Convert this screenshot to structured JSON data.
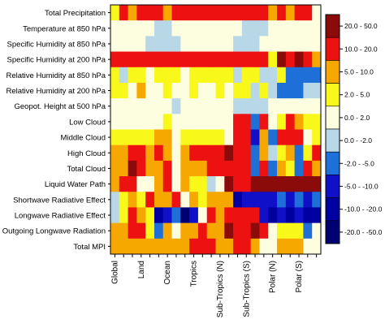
{
  "chart_data": {
    "type": "heatmap",
    "title": "",
    "xlabel": "",
    "ylabel": "",
    "rows": [
      "Total Precipitation",
      "Temperature at 850 hPa",
      "Specific Humidity at 850 hPa",
      "Specific Humidity at 200 hPa",
      "Relative Humidity at 850 hPa",
      "Relative Humidity at 200 hPa",
      "Geopot. Height at 500 hPa",
      "Low Cloud",
      "Middle Cloud",
      "High Cloud",
      "Total Cloud",
      "Liquid Water Path",
      "Shortwave Radiative Effect",
      "Longwave Radiative Effect",
      "Outgoing Longwave Radiation",
      "Total MPI"
    ],
    "column_labels": [
      "Global",
      "Land",
      "Ocean",
      "Tropics",
      "Sub-Tropics (N)",
      "Sub-Tropics (S)",
      "Polar (N)",
      "Polar (S)"
    ],
    "columns_per_label": 3,
    "legend": {
      "placement": "right",
      "bins": [
        {
          "label": "20.0 - 50.0",
          "color": "#8b0a0a"
        },
        {
          "label": "10.0 - 20.0",
          "color": "#ee1111"
        },
        {
          "label": "5.0 - 10.0",
          "color": "#f7a800"
        },
        {
          "label": "2.0 - 5.0",
          "color": "#f8f81a"
        },
        {
          "label": "0.0 - 2.0",
          "color": "#fdfde0"
        },
        {
          "label": "0.0 - -2.0",
          "color": "#b8d8e8"
        },
        {
          "label": "-2.0 - -5.0",
          "color": "#1e6fd8"
        },
        {
          "label": "-5.0 - -10.0",
          "color": "#1010c8"
        },
        {
          "label": "-10.0 - -20.0",
          "color": "#0000a0"
        },
        {
          "label": "-20.0 - -50.0",
          "color": "#000070"
        }
      ]
    },
    "values": [
      [
        3,
        1,
        2,
        1,
        1,
        1,
        2,
        1,
        1,
        1,
        1,
        1,
        1,
        1,
        1,
        1,
        1,
        1,
        2,
        1,
        2,
        1,
        1,
        4
      ],
      [
        4,
        4,
        4,
        4,
        4,
        5,
        5,
        4,
        4,
        4,
        4,
        4,
        4,
        4,
        4,
        5,
        5,
        5,
        4,
        4,
        4,
        4,
        4,
        4
      ],
      [
        4,
        4,
        4,
        4,
        5,
        5,
        5,
        5,
        4,
        4,
        4,
        4,
        4,
        4,
        5,
        5,
        5,
        4,
        4,
        4,
        4,
        4,
        4,
        4
      ],
      [
        1,
        1,
        1,
        1,
        1,
        1,
        1,
        1,
        1,
        1,
        1,
        1,
        1,
        1,
        1,
        1,
        1,
        1,
        3,
        0,
        1,
        0,
        1,
        2
      ],
      [
        3,
        5,
        3,
        3,
        4,
        3,
        3,
        3,
        4,
        3,
        3,
        3,
        3,
        3,
        5,
        3,
        3,
        5,
        5,
        3,
        6,
        6,
        6,
        6
      ],
      [
        3,
        3,
        4,
        2,
        4,
        4,
        3,
        4,
        4,
        3,
        4,
        4,
        3,
        4,
        3,
        3,
        5,
        3,
        5,
        6,
        6,
        6,
        5,
        5
      ],
      [
        4,
        4,
        4,
        4,
        4,
        4,
        4,
        5,
        4,
        4,
        4,
        4,
        4,
        4,
        5,
        5,
        5,
        5,
        4,
        4,
        4,
        4,
        4,
        4
      ],
      [
        4,
        4,
        4,
        4,
        4,
        4,
        3,
        4,
        4,
        4,
        4,
        4,
        4,
        4,
        1,
        1,
        6,
        1,
        4,
        3,
        1,
        2,
        3,
        3
      ],
      [
        3,
        3,
        3,
        3,
        3,
        2,
        2,
        4,
        3,
        3,
        3,
        3,
        3,
        4,
        1,
        1,
        7,
        2,
        6,
        1,
        1,
        1,
        4,
        3
      ],
      [
        2,
        2,
        1,
        1,
        2,
        1,
        2,
        4,
        2,
        1,
        1,
        1,
        1,
        0,
        1,
        1,
        6,
        2,
        5,
        3,
        2,
        6,
        3,
        1
      ],
      [
        2,
        2,
        0,
        1,
        2,
        2,
        1,
        4,
        2,
        2,
        2,
        1,
        1,
        1,
        1,
        1,
        6,
        1,
        6,
        2,
        3,
        6,
        1,
        2
      ],
      [
        2,
        1,
        1,
        4,
        4,
        2,
        1,
        4,
        2,
        3,
        3,
        5,
        4,
        0,
        1,
        1,
        0,
        0,
        0,
        0,
        0,
        0,
        0,
        0
      ],
      [
        5,
        3,
        2,
        3,
        1,
        2,
        2,
        1,
        4,
        2,
        3,
        2,
        2,
        2,
        8,
        7,
        7,
        7,
        7,
        6,
        7,
        6,
        7,
        6
      ],
      [
        5,
        3,
        1,
        2,
        3,
        8,
        7,
        6,
        9,
        7,
        4,
        1,
        2,
        1,
        1,
        1,
        1,
        7,
        8,
        7,
        8,
        7,
        8,
        8
      ],
      [
        2,
        2,
        1,
        1,
        3,
        6,
        2,
        4,
        2,
        2,
        1,
        2,
        2,
        0,
        1,
        1,
        0,
        1,
        4,
        3,
        3,
        3,
        6,
        4
      ],
      [
        2,
        2,
        2,
        2,
        2,
        2,
        2,
        2,
        2,
        1,
        1,
        1,
        2,
        2,
        1,
        1,
        2,
        4,
        4,
        2,
        2,
        2,
        4,
        4
      ]
    ]
  }
}
